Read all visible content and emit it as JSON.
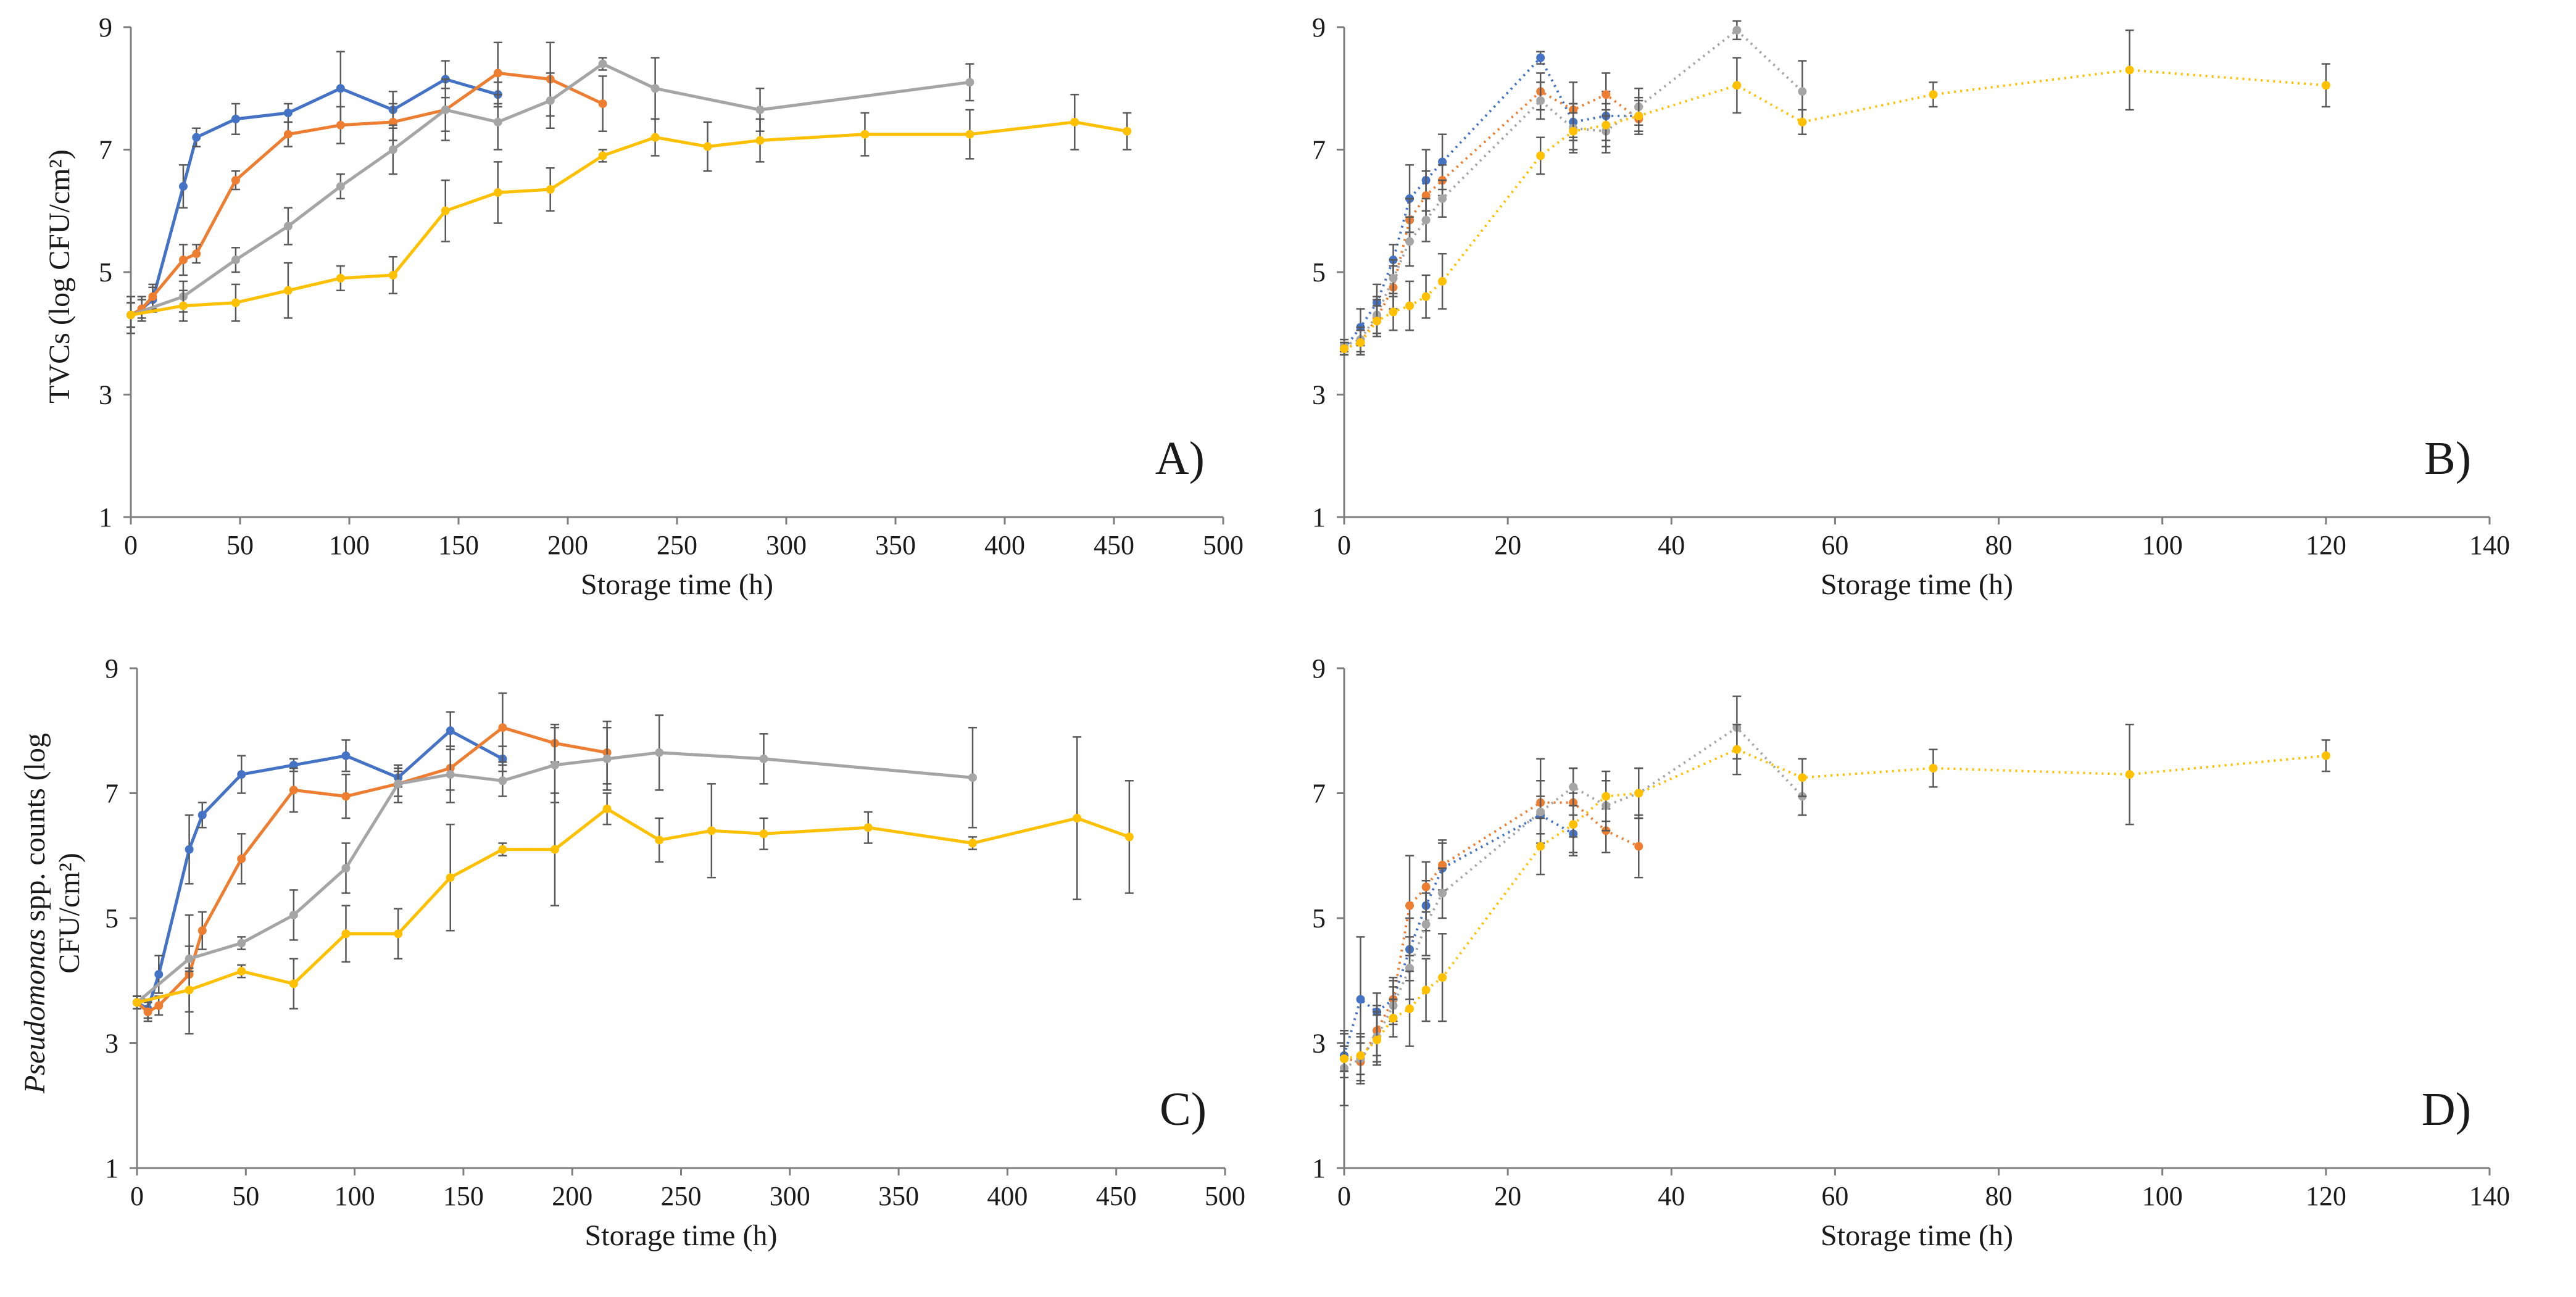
{
  "colors": {
    "blue": "#4472C4",
    "orange": "#ED7D31",
    "gray": "#A5A5A5",
    "yellow": "#FFC000",
    "axis": "#7f7f7f",
    "errorbar": "#595959"
  },
  "figure": {
    "ylabel_top": "TVCs (log CFU/cm²)",
    "ylabel_bottom_italic": "Pseudomonas",
    "ylabel_bottom_line1_rest": " spp. counts (log",
    "ylabel_bottom_line2": "CFU/cm²)"
  },
  "chart_data": [
    {
      "id": "A",
      "panel_label": "A)",
      "type": "line",
      "xlabel": "Storage time (h)",
      "xlim": [
        0,
        500
      ],
      "xticks": [
        0,
        50,
        100,
        150,
        200,
        250,
        300,
        350,
        400,
        450,
        500
      ],
      "ylim": [
        1,
        9
      ],
      "yticks": [
        1,
        3,
        5,
        7,
        9
      ],
      "dashed": false,
      "series": [
        {
          "name": "blue",
          "color": "#4472C4",
          "x": [
            0,
            5,
            10,
            24,
            30,
            48,
            72,
            96,
            120,
            144,
            168
          ],
          "y": [
            4.3,
            4.4,
            4.55,
            6.4,
            7.2,
            7.5,
            7.6,
            8.0,
            7.65,
            8.15,
            7.9
          ],
          "err": [
            0.2,
            0.2,
            0.2,
            0.35,
            0.15,
            0.25,
            0.15,
            0.6,
            0.3,
            0.3,
            0.2
          ]
        },
        {
          "name": "orange",
          "color": "#ED7D31",
          "x": [
            0,
            5,
            10,
            24,
            30,
            48,
            72,
            96,
            120,
            144,
            168,
            192,
            216
          ],
          "y": [
            4.3,
            4.4,
            4.6,
            5.2,
            5.3,
            6.5,
            7.25,
            7.4,
            7.45,
            7.65,
            8.25,
            8.15,
            7.75
          ],
          "err": [
            0.2,
            0.15,
            0.2,
            0.25,
            0.15,
            0.15,
            0.2,
            0.3,
            0.3,
            0.35,
            0.5,
            0.6,
            0.45
          ]
        },
        {
          "name": "gray",
          "color": "#A5A5A5",
          "x": [
            0,
            24,
            48,
            72,
            96,
            120,
            144,
            168,
            192,
            216,
            240,
            288,
            384
          ],
          "y": [
            4.3,
            4.6,
            5.2,
            5.75,
            6.4,
            7.0,
            7.65,
            7.45,
            7.8,
            8.4,
            8.0,
            7.65,
            8.1
          ],
          "err": [
            0.2,
            0.25,
            0.2,
            0.3,
            0.2,
            0.4,
            0.5,
            0.45,
            0.45,
            0.1,
            0.5,
            0.35,
            0.3
          ]
        },
        {
          "name": "yellow",
          "color": "#FFC000",
          "x": [
            0,
            24,
            48,
            72,
            96,
            120,
            144,
            168,
            192,
            216,
            240,
            264,
            288,
            336,
            384,
            432,
            456
          ],
          "y": [
            4.3,
            4.45,
            4.5,
            4.7,
            4.9,
            4.95,
            6.0,
            6.3,
            6.35,
            6.9,
            7.2,
            7.05,
            7.15,
            7.25,
            7.25,
            7.45,
            7.3
          ],
          "err": [
            0.3,
            0.25,
            0.3,
            0.45,
            0.2,
            0.3,
            0.5,
            0.5,
            0.35,
            0.1,
            0.3,
            0.4,
            0.35,
            0.35,
            0.4,
            0.45,
            0.3
          ]
        }
      ]
    },
    {
      "id": "B",
      "panel_label": "B)",
      "type": "line",
      "xlabel": "Storage time (h)",
      "xlim": [
        0,
        140
      ],
      "xticks": [
        0,
        20,
        40,
        60,
        80,
        100,
        120,
        140
      ],
      "ylim": [
        1,
        9
      ],
      "yticks": [
        1,
        3,
        5,
        7,
        9
      ],
      "dashed": true,
      "series": [
        {
          "name": "blue",
          "color": "#4472C4",
          "x": [
            0,
            2,
            4,
            6,
            8,
            10,
            12,
            24,
            28,
            32,
            36
          ],
          "y": [
            3.75,
            4.1,
            4.5,
            5.2,
            6.2,
            6.5,
            6.8,
            8.5,
            7.45,
            7.55,
            7.55
          ],
          "err": [
            0.1,
            0.3,
            0.3,
            0.25,
            0.55,
            0.5,
            0.45,
            0.1,
            0.3,
            0.4,
            0.25
          ]
        },
        {
          "name": "orange",
          "color": "#ED7D31",
          "x": [
            0,
            2,
            4,
            6,
            8,
            10,
            12,
            24,
            28,
            32,
            36
          ],
          "y": [
            3.75,
            3.85,
            4.25,
            4.75,
            5.85,
            6.25,
            6.5,
            7.95,
            7.65,
            7.9,
            7.5
          ],
          "err": [
            0.1,
            0.2,
            0.3,
            0.35,
            0.35,
            0.4,
            0.25,
            0.3,
            0.45,
            0.35,
            0.2
          ]
        },
        {
          "name": "gray",
          "color": "#A5A5A5",
          "x": [
            0,
            2,
            4,
            6,
            8,
            10,
            12,
            24,
            28,
            32,
            36,
            48,
            56
          ],
          "y": [
            3.8,
            3.9,
            4.3,
            4.9,
            5.5,
            5.85,
            6.2,
            7.8,
            7.35,
            7.3,
            7.7,
            8.95,
            7.95
          ],
          "err": [
            0.1,
            0.2,
            0.3,
            0.3,
            0.4,
            0.35,
            0.3,
            0.3,
            0.4,
            0.35,
            0.3,
            0.15,
            0.5
          ]
        },
        {
          "name": "yellow",
          "color": "#FFC000",
          "x": [
            0,
            2,
            4,
            6,
            8,
            10,
            12,
            24,
            28,
            32,
            36,
            48,
            56,
            72,
            96,
            120
          ],
          "y": [
            3.75,
            3.85,
            4.2,
            4.35,
            4.45,
            4.6,
            4.85,
            6.9,
            7.3,
            7.4,
            7.55,
            8.05,
            7.45,
            7.9,
            8.3,
            8.05
          ],
          "err": [
            0.1,
            0.2,
            0.25,
            0.3,
            0.4,
            0.35,
            0.45,
            0.3,
            0.3,
            0.35,
            0.3,
            0.45,
            0.2,
            0.2,
            0.65,
            0.35
          ]
        }
      ]
    },
    {
      "id": "C",
      "panel_label": "C)",
      "type": "line",
      "xlabel": "Storage time (h)",
      "xlim": [
        0,
        500
      ],
      "xticks": [
        0,
        50,
        100,
        150,
        200,
        250,
        300,
        350,
        400,
        450,
        500
      ],
      "ylim": [
        1,
        9
      ],
      "yticks": [
        1,
        3,
        5,
        7,
        9
      ],
      "dashed": false,
      "series": [
        {
          "name": "blue",
          "color": "#4472C4",
          "x": [
            0,
            5,
            10,
            24,
            30,
            48,
            72,
            96,
            120,
            144,
            168
          ],
          "y": [
            3.65,
            3.55,
            4.1,
            6.1,
            6.65,
            7.3,
            7.45,
            7.6,
            7.25,
            8.0,
            7.55
          ],
          "err": [
            0.1,
            0.15,
            0.3,
            0.55,
            0.2,
            0.3,
            0.1,
            0.25,
            0.15,
            0.3,
            0.2
          ]
        },
        {
          "name": "orange",
          "color": "#ED7D31",
          "x": [
            0,
            5,
            10,
            24,
            30,
            48,
            72,
            96,
            120,
            144,
            168,
            192,
            216
          ],
          "y": [
            3.65,
            3.5,
            3.6,
            4.1,
            4.8,
            5.95,
            7.05,
            6.95,
            7.15,
            7.4,
            8.05,
            7.8,
            7.65
          ],
          "err": [
            0.1,
            0.15,
            0.15,
            0.95,
            0.3,
            0.4,
            0.35,
            0.35,
            0.2,
            0.35,
            0.55,
            0.3,
            0.5
          ]
        },
        {
          "name": "gray",
          "color": "#A5A5A5",
          "x": [
            0,
            24,
            48,
            72,
            96,
            120,
            144,
            168,
            192,
            216,
            240,
            288,
            384
          ],
          "y": [
            3.65,
            4.35,
            4.6,
            5.05,
            5.8,
            7.15,
            7.3,
            7.2,
            7.45,
            7.55,
            7.65,
            7.55,
            7.25
          ],
          "err": [
            0.1,
            0.2,
            0.1,
            0.4,
            0.4,
            0.3,
            0.45,
            0.25,
            0.6,
            0.5,
            0.6,
            0.4,
            0.8
          ]
        },
        {
          "name": "yellow",
          "color": "#FFC000",
          "x": [
            0,
            24,
            48,
            72,
            96,
            120,
            144,
            168,
            192,
            216,
            240,
            264,
            288,
            336,
            384,
            432,
            456
          ],
          "y": [
            3.65,
            3.85,
            4.15,
            3.95,
            4.75,
            4.75,
            5.65,
            6.1,
            6.1,
            6.75,
            6.25,
            6.4,
            6.35,
            6.45,
            6.2,
            6.6,
            6.3
          ],
          "err": [
            0.1,
            0.35,
            0.1,
            0.4,
            0.45,
            0.4,
            0.85,
            0.1,
            0.9,
            0.25,
            0.35,
            0.75,
            0.25,
            0.25,
            0.1,
            1.3,
            0.9
          ]
        }
      ]
    },
    {
      "id": "D",
      "panel_label": "D)",
      "type": "line",
      "xlabel": "Storage time (h)",
      "xlim": [
        0,
        140
      ],
      "xticks": [
        0,
        20,
        40,
        60,
        80,
        100,
        120,
        140
      ],
      "ylim": [
        1,
        9
      ],
      "yticks": [
        1,
        3,
        5,
        7,
        9
      ],
      "dashed": true,
      "series": [
        {
          "name": "blue",
          "color": "#4472C4",
          "x": [
            0,
            2,
            4,
            6,
            8,
            10,
            12,
            24,
            28
          ],
          "y": [
            2.8,
            3.7,
            3.5,
            3.7,
            4.5,
            5.2,
            5.8,
            6.65,
            6.35
          ],
          "err": [
            0.35,
            1.0,
            0.3,
            0.35,
            0.5,
            0.4,
            0.4,
            0.3,
            0.3
          ]
        },
        {
          "name": "orange",
          "color": "#ED7D31",
          "x": [
            0,
            2,
            4,
            6,
            8,
            10,
            12,
            24,
            28,
            32,
            36
          ],
          "y": [
            2.75,
            2.7,
            3.2,
            3.7,
            5.2,
            5.5,
            5.85,
            6.85,
            6.85,
            6.4,
            6.15
          ],
          "err": [
            0.2,
            0.3,
            0.4,
            0.3,
            0.8,
            0.4,
            0.4,
            0.7,
            0.55,
            0.35,
            0.5
          ]
        },
        {
          "name": "gray",
          "color": "#A5A5A5",
          "x": [
            0,
            2,
            4,
            6,
            8,
            10,
            12,
            24,
            28,
            32,
            36,
            48,
            56
          ],
          "y": [
            2.6,
            2.75,
            3.1,
            3.6,
            4.2,
            4.9,
            5.4,
            6.7,
            7.1,
            6.8,
            7.0,
            8.05,
            6.95
          ],
          "err": [
            0.6,
            0.4,
            0.4,
            0.3,
            0.5,
            0.5,
            0.4,
            0.5,
            0.3,
            0.4,
            0.4,
            0.5,
            0.3
          ]
        },
        {
          "name": "yellow",
          "color": "#FFC000",
          "x": [
            0,
            2,
            4,
            6,
            8,
            10,
            12,
            24,
            28,
            32,
            36,
            48,
            56,
            72,
            96,
            120
          ],
          "y": [
            2.75,
            2.8,
            3.05,
            3.4,
            3.55,
            3.85,
            4.05,
            6.15,
            6.5,
            6.95,
            7.0,
            7.7,
            7.25,
            7.4,
            7.3,
            7.6
          ],
          "err": [
            0.2,
            0.3,
            0.4,
            0.3,
            0.6,
            0.5,
            0.7,
            0.45,
            0.5,
            0.4,
            0.4,
            0.4,
            0.3,
            0.3,
            0.8,
            0.25
          ]
        }
      ]
    }
  ]
}
